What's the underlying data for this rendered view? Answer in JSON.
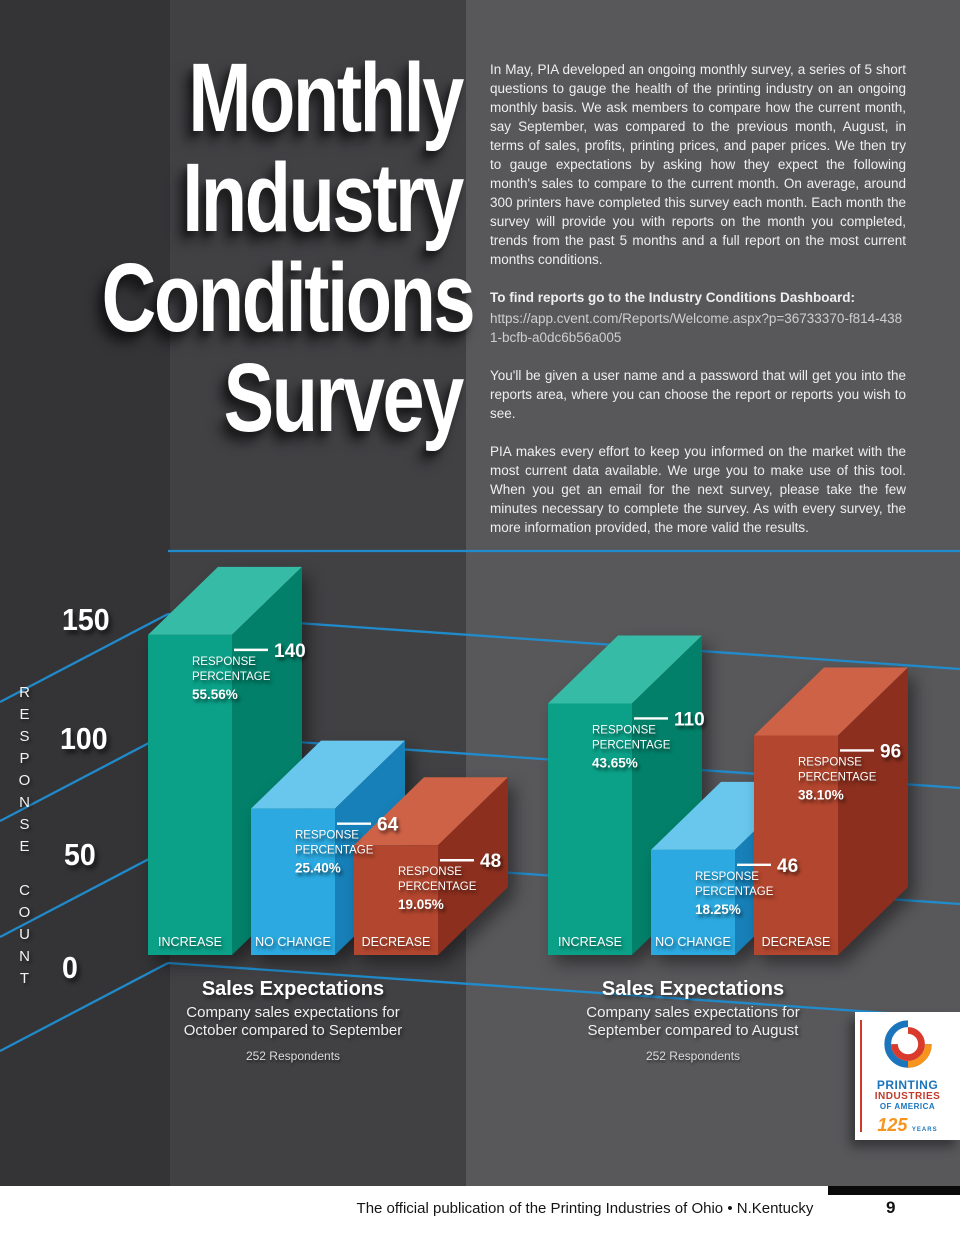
{
  "page": {
    "background": "#58585B",
    "panel_dark": "#414144",
    "panel_darker": "#343437",
    "title_lines": [
      "Monthly",
      "Industry",
      "Conditions",
      "Survey"
    ]
  },
  "intro": {
    "paragraph1": "In May, PIA developed an ongoing monthly survey, a series of 5 short questions to gauge the health of the printing industry on an ongoing monthly basis. We ask members to compare how the current month, say September, was compared to the previous month, August, in terms of sales, profits, printing prices, and paper prices. We then try to gauge expectations by asking how they expect the following month's sales to compare to the current month. On average, around 300 printers have completed this survey each month.  Each month the survey will provide you with reports on the month you completed, trends from the past 5 months and a full report on the most current months conditions.",
    "dashboard_label": "To find reports go to the Industry Conditions Dashboard:",
    "dashboard_url": "https://app.cvent.com/Reports/Welcome.aspx?p=36733370-f814-4381-bcfb-a0dc6b56a005",
    "paragraph2": "You'll be given a user name and a password that will get you into the reports area, where you can choose the report or reports you wish to see.",
    "paragraph3": "PIA makes every effort to keep you informed on the market with the most current data available.  We urge you to make use of this tool.  When you get an email for the next survey, please take the few minutes necessary to complete the survey.  As with every survey, the more information provided, the more valid the results."
  },
  "axis": {
    "label": "RESPONSE COUNT",
    "ticks": [
      "150",
      "100",
      "50",
      "0"
    ]
  },
  "response_percentage_label": [
    "RESPONSE",
    "PERCENTAGE"
  ],
  "gridline_color": "#1F8FD3",
  "bar_face_colors": [
    {
      "front": "#0BA188",
      "top": "#36BCA6",
      "side": "#028069"
    },
    {
      "front": "#2BA9E0",
      "top": "#69C7EE",
      "side": "#1780B8"
    },
    {
      "front": "#B3462E",
      "top": "#CE6247",
      "side": "#8C2F1E"
    }
  ],
  "chart_data": [
    {
      "type": "bar",
      "title": "Sales Expectations",
      "subtitle_lines": [
        "Company sales expectations for",
        "October compared to September"
      ],
      "respondents": "252 Respondents",
      "categories": [
        "INCREASE",
        "NO CHANGE",
        "DECREASE"
      ],
      "values": [
        140,
        64,
        48
      ],
      "percentages": [
        "55.56%",
        "25.40%",
        "19.05%"
      ],
      "ylabel": "RESPONSE COUNT",
      "ylim": [
        0,
        150
      ],
      "yticks": [
        0,
        50,
        100,
        150
      ],
      "legend": "none",
      "grid": "on"
    },
    {
      "type": "bar",
      "title": "Sales Expectations",
      "subtitle_lines": [
        "Company sales expectations for",
        "September compared to August"
      ],
      "respondents": "252 Respondents",
      "categories": [
        "INCREASE",
        "NO CHANGE",
        "DECREASE"
      ],
      "values": [
        110,
        46,
        96
      ],
      "percentages": [
        "43.65%",
        "18.25%",
        "38.10%"
      ],
      "ylabel": "RESPONSE COUNT",
      "ylim": [
        0,
        150
      ],
      "yticks": [
        0,
        50,
        100,
        150
      ],
      "legend": "none",
      "grid": "on"
    }
  ],
  "logo": {
    "line1": "PRINTING",
    "line2": "INDUSTRIES",
    "line3": "OF AMERICA",
    "years": "125",
    "years_label": "YEARS"
  },
  "footer": {
    "text": "The official publication of the Printing Industries of Ohio • N.Kentucky",
    "page_number": "9"
  }
}
